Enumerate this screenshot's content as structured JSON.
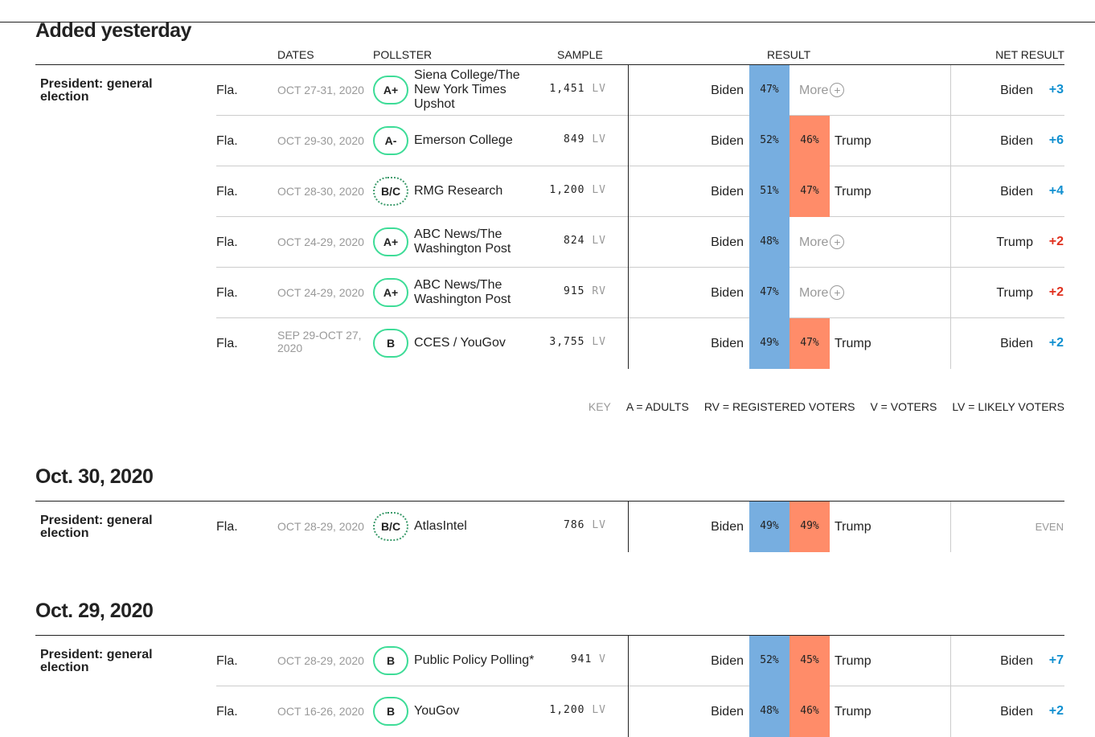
{
  "headers": {
    "dates": "DATES",
    "pollster": "POLLSTER",
    "sample": "SAMPLE",
    "result": "RESULT",
    "net": "NET RESULT"
  },
  "more_label": "More",
  "key": {
    "label": "KEY",
    "items": [
      "A = ADULTS",
      "RV = REGISTERED VOTERS",
      "V = VOTERS",
      "LV = LIKELY VOTERS"
    ]
  },
  "colors": {
    "biden": "#77aee0",
    "trump": "#ff8c69",
    "net_biden": "#0f8fd0",
    "net_trump": "#e0301e",
    "grade": "#3ddc97"
  },
  "sections": [
    {
      "title": "Added yesterday",
      "race": "President: general election",
      "polls": [
        {
          "state": "Fla.",
          "dates": "OCT 27-31, 2020",
          "grade": "A+",
          "pollster": "Siena College/The New York Times Upshot",
          "sample": "1,451",
          "unit": "LV",
          "biden": "47%",
          "trump": null,
          "net_name": "Biden",
          "net": "+3",
          "net_party": "biden"
        },
        {
          "state": "Fla.",
          "dates": "OCT 29-30, 2020",
          "grade": "A-",
          "pollster": "Emerson College",
          "sample": "849",
          "unit": "LV",
          "biden": "52%",
          "trump": "46%",
          "net_name": "Biden",
          "net": "+6",
          "net_party": "biden"
        },
        {
          "state": "Fla.",
          "dates": "OCT 28-30, 2020",
          "grade": "B/C",
          "pollster": "RMG Research",
          "sample": "1,200",
          "unit": "LV",
          "biden": "51%",
          "trump": "47%",
          "net_name": "Biden",
          "net": "+4",
          "net_party": "biden"
        },
        {
          "state": "Fla.",
          "dates": "OCT 24-29, 2020",
          "grade": "A+",
          "pollster": "ABC News/The Washington Post",
          "sample": "824",
          "unit": "LV",
          "biden": "48%",
          "trump": null,
          "net_name": "Trump",
          "net": "+2",
          "net_party": "trump"
        },
        {
          "state": "Fla.",
          "dates": "OCT 24-29, 2020",
          "grade": "A+",
          "pollster": "ABC News/The Washington Post",
          "sample": "915",
          "unit": "RV",
          "biden": "47%",
          "trump": null,
          "net_name": "Trump",
          "net": "+2",
          "net_party": "trump"
        },
        {
          "state": "Fla.",
          "dates": "SEP 29-OCT 27, 2020",
          "grade": "B",
          "pollster": "CCES / YouGov",
          "sample": "3,755",
          "unit": "LV",
          "biden": "49%",
          "trump": "47%",
          "net_name": "Biden",
          "net": "+2",
          "net_party": "biden"
        }
      ]
    },
    {
      "title": "Oct. 30, 2020",
      "race": "President: general election",
      "polls": [
        {
          "state": "Fla.",
          "dates": "OCT 28-29, 2020",
          "grade": "B/C",
          "pollster": "AtlasIntel",
          "sample": "786",
          "unit": "LV",
          "biden": "49%",
          "trump": "49%",
          "net_name": null,
          "net": "EVEN",
          "net_party": "even"
        }
      ]
    },
    {
      "title": "Oct. 29, 2020",
      "race": "President: general election",
      "polls": [
        {
          "state": "Fla.",
          "dates": "OCT 28-29, 2020",
          "grade": "B",
          "pollster": "Public Policy Polling*",
          "sample": "941",
          "unit": "V",
          "biden": "52%",
          "trump": "45%",
          "net_name": "Biden",
          "net": "+7",
          "net_party": "biden"
        },
        {
          "state": "Fla.",
          "dates": "OCT 16-26, 2020",
          "grade": "B",
          "pollster": "YouGov",
          "sample": "1,200",
          "unit": "LV",
          "biden": "48%",
          "trump": "46%",
          "net_name": "Biden",
          "net": "+2",
          "net_party": "biden"
        }
      ]
    }
  ]
}
